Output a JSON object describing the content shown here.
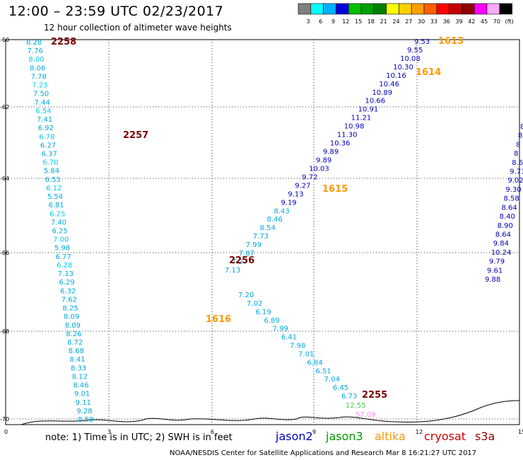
{
  "header": {
    "title": "12:00 – 23:59 UTC 02/23/2017",
    "subtitle": "12 hour collection of altimeter wave heights"
  },
  "legend": {
    "bins": [
      {
        "label": "3",
        "color": "#808080"
      },
      {
        "label": "6",
        "color": "#00ffff"
      },
      {
        "label": "9",
        "color": "#00b0ff"
      },
      {
        "label": "12",
        "color": "#0000dd"
      },
      {
        "label": "15",
        "color": "#00c000"
      },
      {
        "label": "18",
        "color": "#00a000"
      },
      {
        "label": "21",
        "color": "#008000"
      },
      {
        "label": "24",
        "color": "#ffff00"
      },
      {
        "label": "27",
        "color": "#ffd000"
      },
      {
        "label": "30",
        "color": "#ffa000"
      },
      {
        "label": "33",
        "color": "#ff6000"
      },
      {
        "label": "36",
        "color": "#ff0000"
      },
      {
        "label": "39",
        "color": "#c00000"
      },
      {
        "label": "42",
        "color": "#900000"
      },
      {
        "label": "45",
        "color": "#ff00ff"
      },
      {
        "label": "70",
        "color": "#ffaaff"
      },
      {
        "label": "(ft)",
        "color": "#000000"
      }
    ]
  },
  "axes": {
    "lat_labels": [
      "-60",
      "-62",
      "-64",
      "-66",
      "-68",
      "-70"
    ],
    "lon_labels": [
      "0",
      "3",
      "6",
      "9",
      "12",
      "15"
    ]
  },
  "tracks": {
    "jason2_a": [
      "8.58",
      "9.28",
      "9.11",
      "9.01",
      "8.46",
      "8.12",
      "8.33",
      "8.41",
      "8.68",
      "8.72",
      "8.26",
      "8.09",
      "8.09",
      "8.25",
      "7.62",
      "6.32",
      "6.29",
      "7.13",
      "6.28",
      "6.77",
      "5.98",
      "7.00",
      "6.25",
      "7.40",
      "6.25",
      "6.81",
      "5.54",
      "6.12",
      "6.53",
      "5.84",
      "6.70",
      "6.37",
      "6.27",
      "6.78",
      "6.92",
      "7.41",
      "6.54",
      "7.44",
      "7.50",
      "7.23",
      "7.78",
      "8.06",
      "8.00",
      "7.76",
      "8.28"
    ],
    "jason2_b_low": [
      "7.13",
      "7.27",
      "7.87",
      "7.99",
      "7.73",
      "8.54",
      "8.46",
      "8.43",
      "9.19",
      "9.13",
      "9.27",
      "9.72",
      "10.03",
      "9.89",
      "9.89",
      "10.36",
      "11.30",
      "10.98",
      "11.21",
      "10.91",
      "10.66",
      "10.89",
      "10.46",
      "10.16",
      "10.30",
      "10.08",
      "9.55",
      "9.53"
    ],
    "cross_lower": [
      "7.20",
      "7.02",
      "6.19",
      "6.89",
      "7.99",
      "6.41",
      "7.98",
      "7.01",
      "6.84",
      "6.51",
      "7.04",
      "6.45",
      "6.73"
    ],
    "east_track": [
      "8",
      "8",
      "8",
      "8",
      "8.6",
      "9.73",
      "9.02",
      "9.30",
      "8.58",
      "8.64",
      "8.40",
      "8.90",
      "8.64",
      "9.84",
      "10.24",
      "9.79",
      "9.61",
      "9.88"
    ]
  },
  "passes": {
    "p2258": "2258",
    "p2257": "2257",
    "p2256": "2256",
    "p2255": "2255",
    "p1613": "1613",
    "p1614": "1614",
    "p1615": "1615",
    "p1616": "1616"
  },
  "extra_labels": {
    "green_val": "12.55",
    "pink_val": "57.09"
  },
  "footer": {
    "note": "note: 1) Time is in UTC; 2) SWH is in feet",
    "satellites": [
      {
        "name": "jason2",
        "color": "#0000cc"
      },
      {
        "name": "jason3",
        "color": "#009900"
      },
      {
        "name": "altika",
        "color": "#ff9900"
      },
      {
        "name": "cryosat",
        "color": "#cc0000"
      },
      {
        "name": "s3a",
        "color": "#990000"
      }
    ],
    "credit": "NOAA/NESDIS Center for Satellite Applications and Research   Mar  8 16:21:27 UTC 2017"
  },
  "colors": {
    "jason2_dark": "#0000bb",
    "jason2_light": "#00aadd",
    "cyan_text": "#00ccee",
    "pass_dark": "#7a0000",
    "pass_orange": "#ff9900",
    "green": "#44cc44",
    "pink": "#ff88ff"
  }
}
